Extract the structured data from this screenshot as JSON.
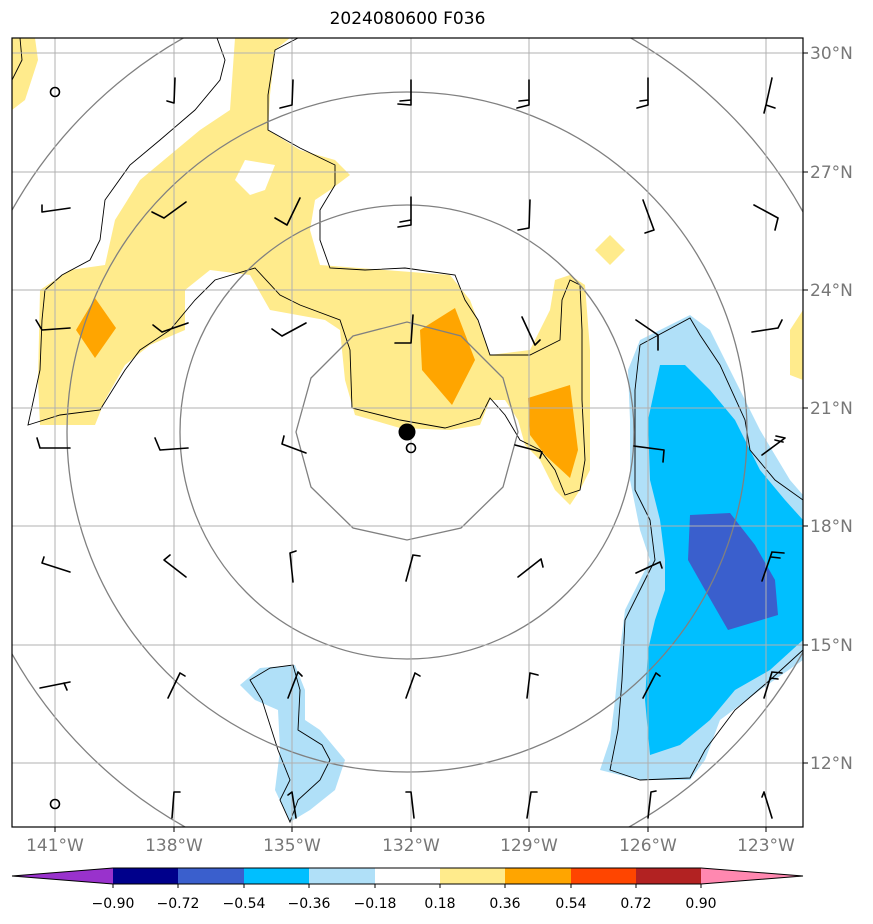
{
  "title": "2024080600 F036",
  "lat_labels": [
    "30°N",
    "27°N",
    "24°N",
    "21°N",
    "18°N",
    "15°N",
    "12°N"
  ],
  "lon_labels": [
    "141°W",
    "138°W",
    "135°W",
    "132°W",
    "129°W",
    "126°W",
    "123°W"
  ],
  "colorbar": {
    "ticks": [
      "−0.90",
      "−0.72",
      "−0.54",
      "−0.36",
      "−0.18",
      "0.18",
      "0.36",
      "0.54",
      "0.72",
      "0.90"
    ],
    "colors": [
      "#9932cc",
      "#00008b",
      "#3a5fcd",
      "#00bfff",
      "#b0e0f8",
      "#ffffff",
      "#ffeb8c",
      "#ffa500",
      "#ff4500",
      "#b22222",
      "#ff88b0"
    ]
  },
  "colors": {
    "light_yellow": "#ffeb8c",
    "orange": "#ffa500",
    "light_blue": "#b0e0f8",
    "deep_sky_blue": "#00bfff",
    "royal_blue": "#3a5fcd",
    "grid": "#b0b0b0",
    "range_rings": "#808080"
  },
  "storm_center": {
    "lon": "132°W",
    "lat": "20.5°N"
  }
}
